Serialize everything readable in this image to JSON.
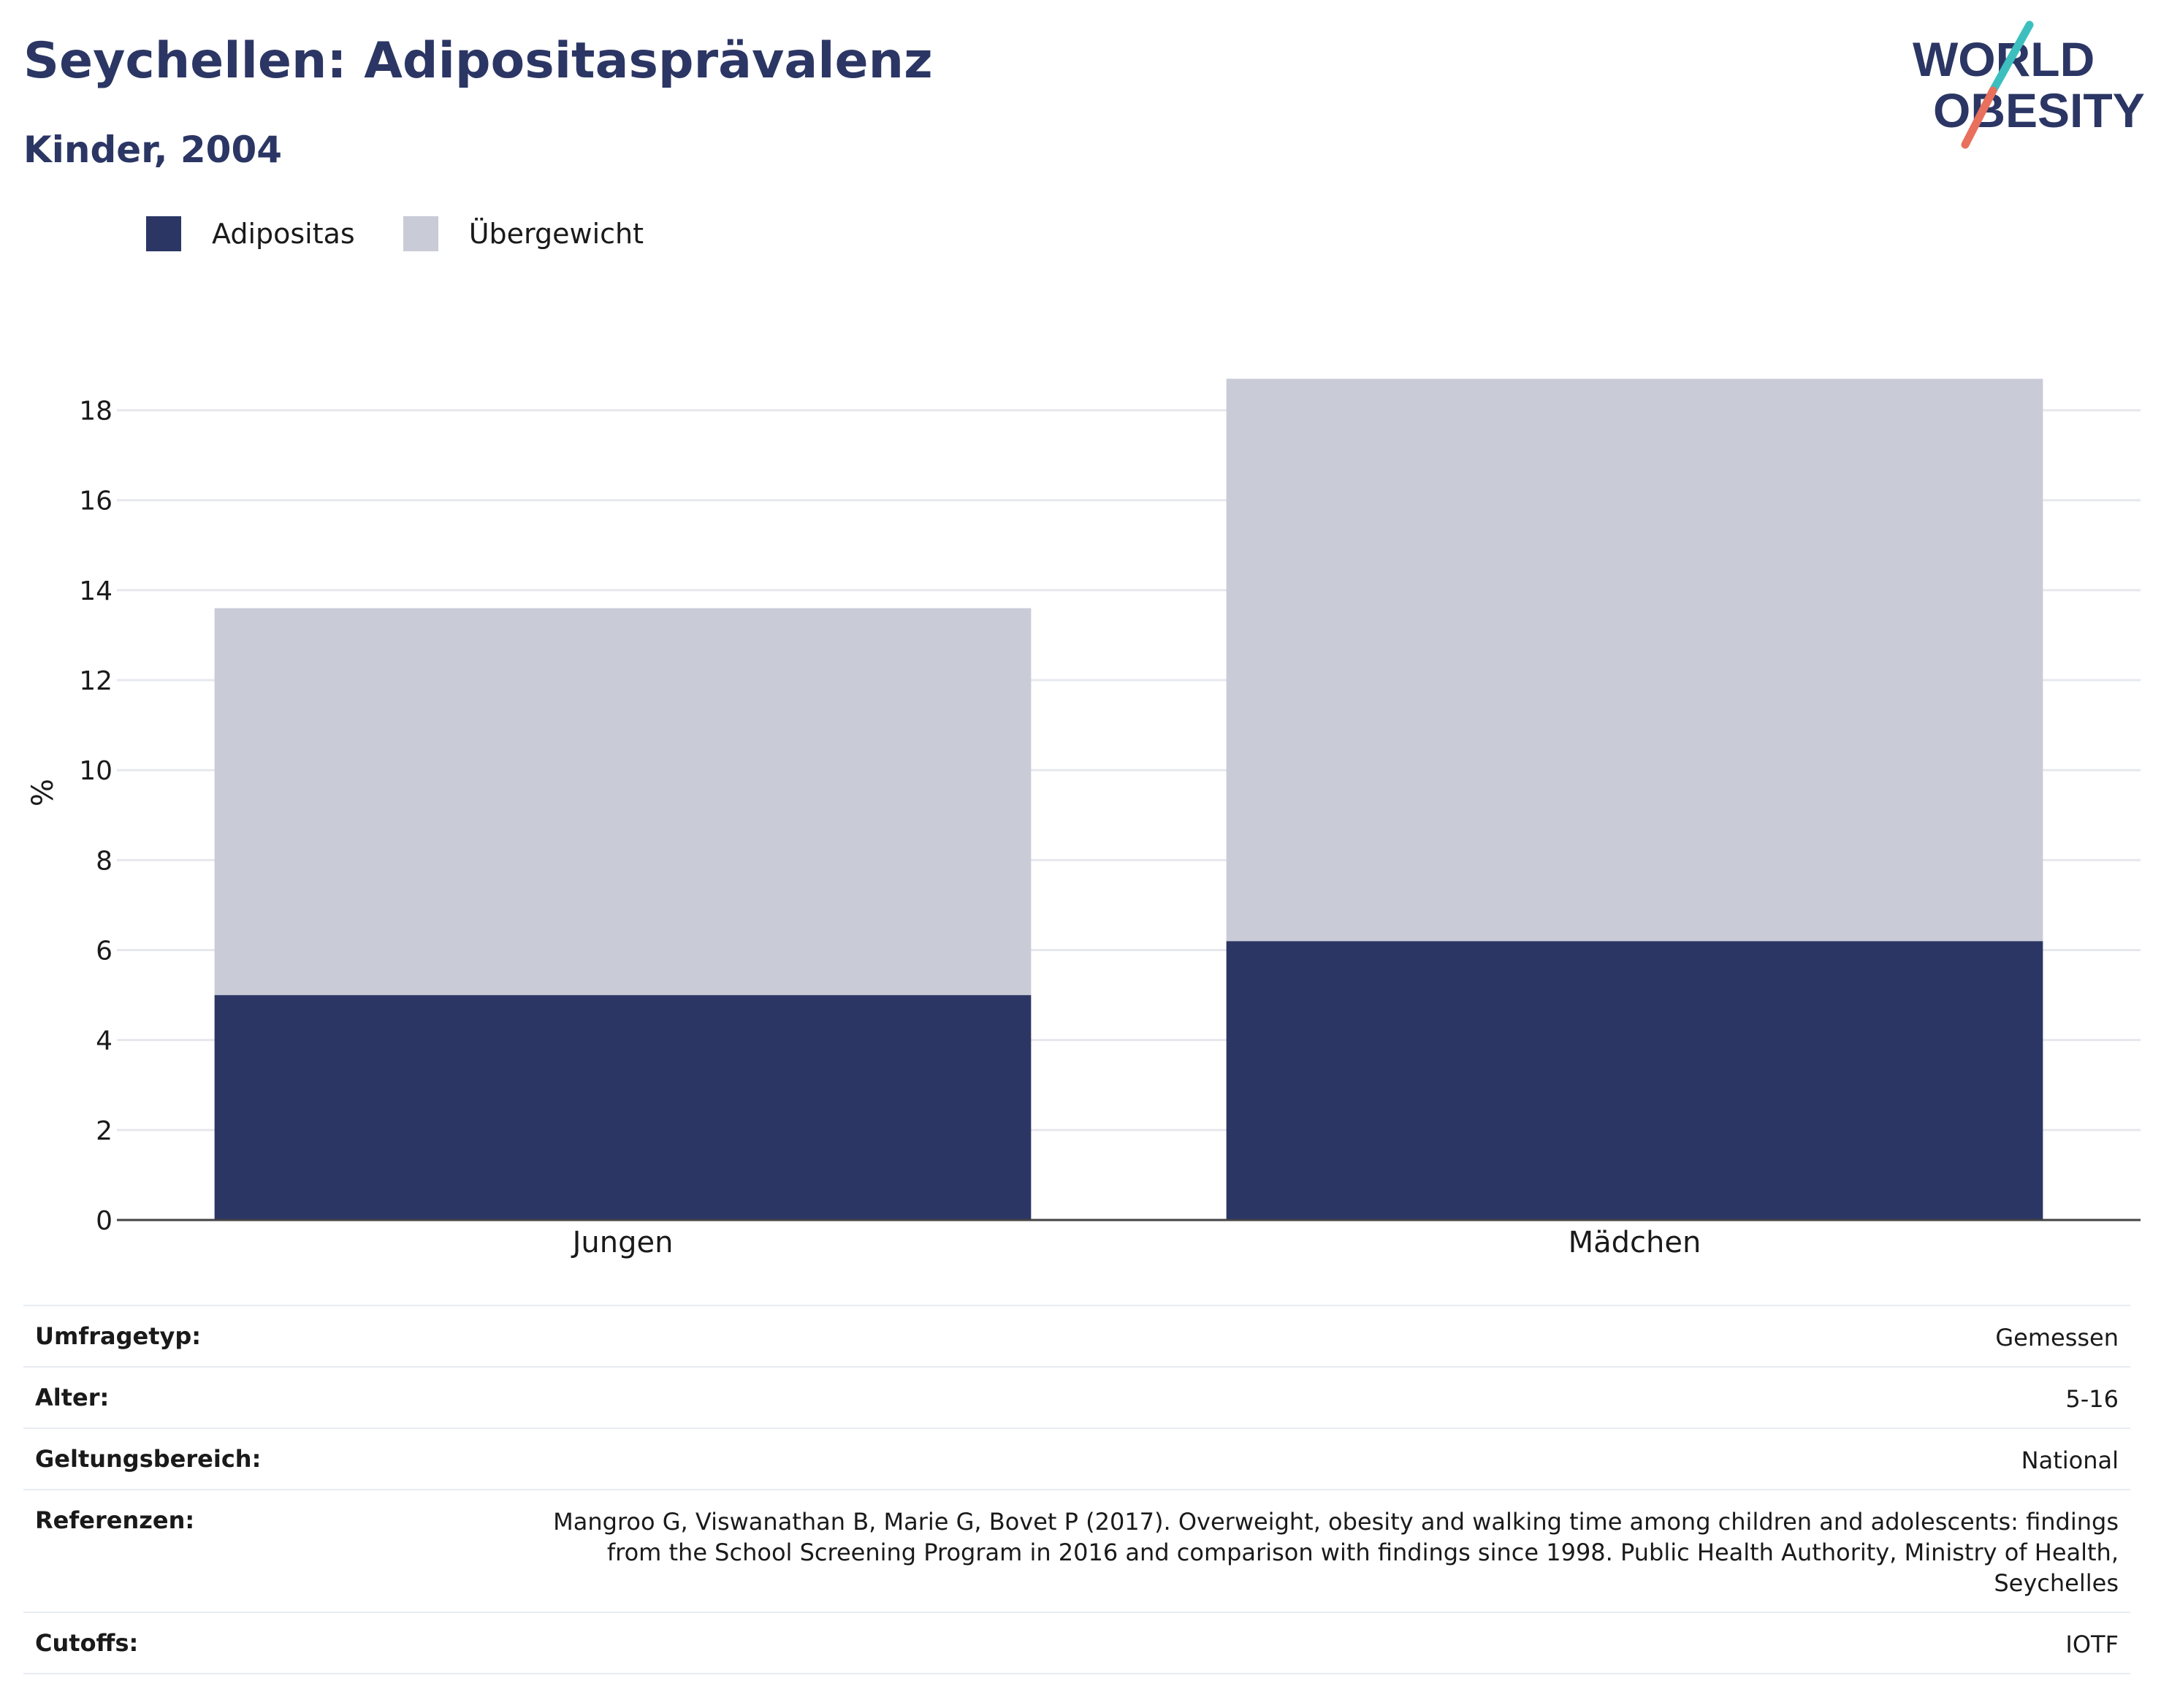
{
  "header": {
    "title": "Seychellen: Adipositasprävalenz",
    "subtitle": "Kinder, 2004"
  },
  "logo": {
    "line1": "WORLD",
    "line2": "OBESITY",
    "colors": {
      "text": "#2b3664",
      "slash_teal": "#3dbfbf",
      "slash_coral": "#e8705c"
    }
  },
  "legend": {
    "items": [
      {
        "label": "Adipositas",
        "color": "#2b3664"
      },
      {
        "label": "Übergewicht",
        "color": "#c9cbd7"
      }
    ]
  },
  "chart_data": {
    "type": "bar",
    "stacked": true,
    "categories": [
      "Jungen",
      "Mädchen"
    ],
    "series": [
      {
        "name": "Adipositas",
        "values": [
          5.0,
          6.2
        ],
        "color": "#2b3664"
      },
      {
        "name": "Übergewicht",
        "values": [
          8.6,
          12.5
        ],
        "color": "#c9cbd7"
      }
    ],
    "title": "Seychellen: Adipositasprävalenz",
    "subtitle": "Kinder, 2004",
    "xlabel": "",
    "ylabel": "%",
    "ylim": [
      0,
      19
    ],
    "yticks": [
      0,
      2,
      4,
      6,
      8,
      10,
      12,
      14,
      16,
      18
    ],
    "grid": true,
    "legend_position": "top-left"
  },
  "info_table": {
    "rows": [
      {
        "label": "Umfragetyp:",
        "value": "Gemessen"
      },
      {
        "label": "Alter:",
        "value": "5-16"
      },
      {
        "label": "Geltungsbereich:",
        "value": "National"
      },
      {
        "label": "Referenzen:",
        "value": "Mangroo G, Viswanathan B, Marie G, Bovet P (2017). Overweight, obesity and walking time among children and adolescents: findings from the School Screening Program in 2016 and comparison with findings since 1998. Public Health Authority, Ministry of Health, Seychelles"
      },
      {
        "label": "Cutoffs:",
        "value": "IOTF"
      }
    ]
  }
}
